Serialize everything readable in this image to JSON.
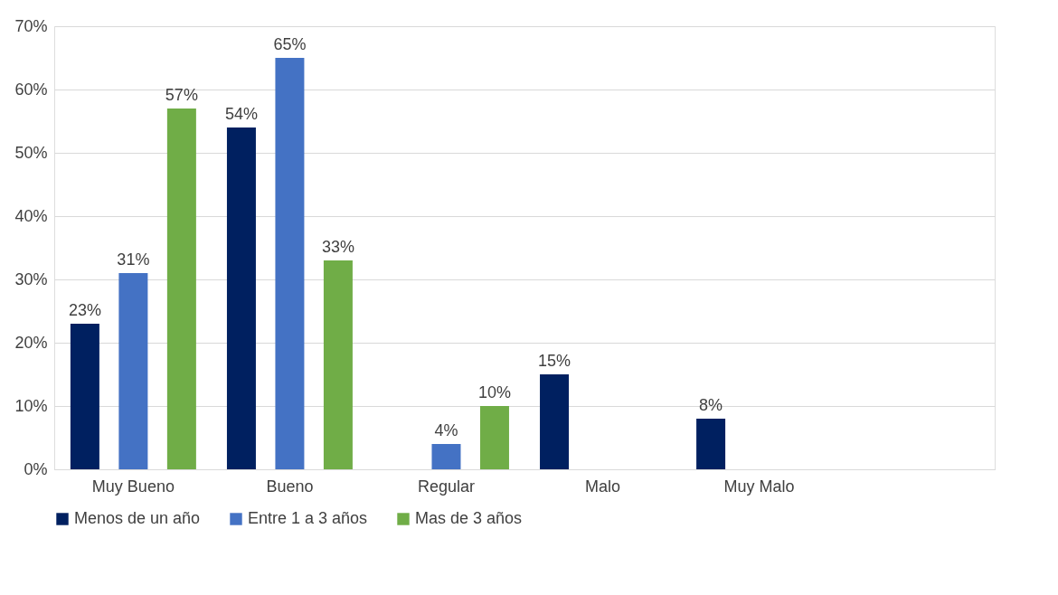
{
  "chart_data": {
    "type": "bar",
    "categories": [
      "Muy Bueno",
      "Bueno",
      "Regular",
      "Malo",
      "Muy Malo",
      null
    ],
    "series": [
      {
        "name": "Menos de un año",
        "color": "#002060",
        "values": [
          23,
          54,
          null,
          15,
          8,
          null
        ],
        "value_labels": [
          "23%",
          "54%",
          null,
          "15%",
          "8%",
          null
        ]
      },
      {
        "name": "Entre 1 a 3 años",
        "color": "#4472c4",
        "values": [
          31,
          65,
          4,
          null,
          null,
          null
        ],
        "value_labels": [
          "31%",
          "65%",
          "4%",
          null,
          null,
          null
        ]
      },
      {
        "name": "Mas de 3 años",
        "color": "#70ad47",
        "values": [
          57,
          33,
          10,
          null,
          null,
          null
        ],
        "value_labels": [
          "57%",
          "33%",
          "10%",
          null,
          null,
          null
        ]
      }
    ],
    "ylim": [
      0,
      70
    ],
    "yticks": [
      {
        "value": 0,
        "label": "0%"
      },
      {
        "value": 10,
        "label": "10%"
      },
      {
        "value": 20,
        "label": "20%"
      },
      {
        "value": 30,
        "label": "30%"
      },
      {
        "value": 40,
        "label": "40%"
      },
      {
        "value": 50,
        "label": "50%"
      },
      {
        "value": 60,
        "label": "60%"
      },
      {
        "value": 70,
        "label": "70%"
      }
    ],
    "grid": "y",
    "legend": "bottom"
  }
}
